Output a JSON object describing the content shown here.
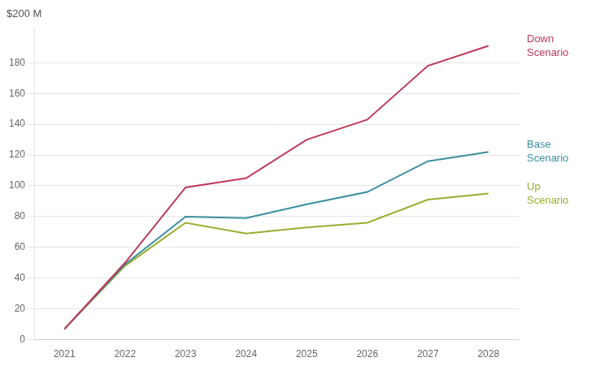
{
  "chart_data": {
    "type": "line",
    "ylabel": "$200 M",
    "x": [
      2021,
      2022,
      2023,
      2024,
      2025,
      2026,
      2027,
      2028
    ],
    "series": [
      {
        "name": "Down\nScenario",
        "color": "#c0395a",
        "values": [
          7,
          50,
          99,
          105,
          130,
          143,
          178,
          191
        ]
      },
      {
        "name": "Base\nScenario",
        "color": "#3a8f9e",
        "values": [
          7,
          49,
          80,
          79,
          88,
          96,
          116,
          122
        ]
      },
      {
        "name": "Up\nScenario",
        "color": "#9aad30",
        "values": [
          7,
          48,
          76,
          69,
          73,
          76,
          91,
          95
        ]
      }
    ],
    "xlim": [
      2020.5,
      2028.5
    ],
    "xticks": [
      2021,
      2022,
      2023,
      2024,
      2025,
      2026,
      2027,
      2028
    ],
    "ylim": [
      0,
      202
    ],
    "yticks": [
      0,
      20,
      40,
      60,
      80,
      100,
      120,
      140,
      160,
      180
    ],
    "grid": "y"
  }
}
